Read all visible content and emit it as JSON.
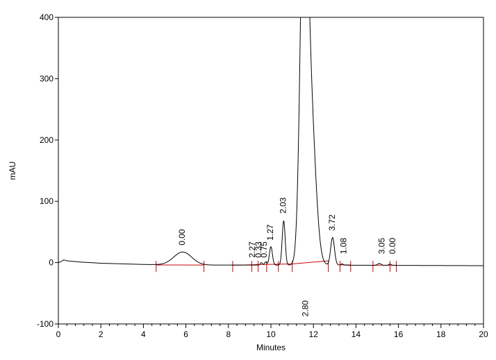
{
  "chart_data": {
    "type": "line",
    "xlabel": "Minutes",
    "ylabel": "mAU",
    "xlim": [
      0,
      20
    ],
    "ylim": [
      -100,
      400
    ],
    "x_ticks": [
      0,
      2,
      4,
      6,
      8,
      10,
      12,
      14,
      16,
      18,
      20
    ],
    "y_ticks": [
      -100,
      0,
      100,
      200,
      300,
      400
    ],
    "grid": false,
    "colors": {
      "trace": "#000000",
      "baseline": "#cc0000",
      "axis": "#000000"
    },
    "baseline_value": -4,
    "background": [
      [
        0.0,
        0
      ],
      [
        0.15,
        2
      ],
      [
        0.25,
        4.5
      ],
      [
        0.4,
        3
      ],
      [
        1.0,
        1
      ],
      [
        2.0,
        -1
      ],
      [
        3.0,
        -2
      ],
      [
        4.0,
        -3
      ],
      [
        5.0,
        -3.5
      ],
      [
        7.0,
        -4
      ],
      [
        12.0,
        -4
      ],
      [
        20.0,
        -5
      ]
    ],
    "peaks": [
      {
        "rt": 5.85,
        "height": 21,
        "sigma": 0.42,
        "label": "0.00"
      },
      {
        "rt": 9.55,
        "height": 4,
        "sigma": 0.05,
        "label": "0.33"
      },
      {
        "rt": 9.75,
        "height": 5,
        "sigma": 0.05,
        "label": "0.75"
      },
      {
        "rt": 10.0,
        "height": 30,
        "sigma": 0.07,
        "label": "1.27"
      },
      {
        "rt": 10.6,
        "height": 72,
        "sigma": 0.07,
        "label": "2.03"
      },
      {
        "rt": 11.55,
        "height": 560,
        "sigma": 0.17,
        "label": "2.80"
      },
      {
        "rt": 11.85,
        "height": 260,
        "sigma": 0.24,
        "label": ""
      },
      {
        "rt": 12.9,
        "height": 45,
        "sigma": 0.09,
        "label": "3.72"
      },
      {
        "rt": 13.35,
        "height": 2,
        "sigma": 0.06,
        "label": "1.08"
      },
      {
        "rt": 15.1,
        "height": 3,
        "sigma": 0.08,
        "label": "3.05"
      },
      {
        "rt": 15.6,
        "height": 2,
        "sigma": 0.06,
        "label": "0.00"
      }
    ],
    "baseline_segments": [
      [
        [
          4.6,
          -3.8
        ],
        [
          6.85,
          -4
        ]
      ],
      [
        [
          8.2,
          -4.2
        ],
        [
          9.1,
          -3.5
        ]
      ],
      [
        [
          9.1,
          -3.5
        ],
        [
          9.4,
          -3.2
        ]
      ],
      [
        [
          9.4,
          -3.2
        ],
        [
          9.8,
          -3.0
        ]
      ],
      [
        [
          9.8,
          -3.0
        ],
        [
          10.35,
          -2.6
        ]
      ],
      [
        [
          10.35,
          -2.6
        ],
        [
          11.0,
          -2.2
        ]
      ],
      [
        [
          11.0,
          -2.2
        ],
        [
          12.7,
          3
        ]
      ],
      [
        [
          13.25,
          -3.5
        ],
        [
          13.75,
          -3.8
        ]
      ],
      [
        [
          14.8,
          -4.2
        ],
        [
          15.3,
          -4.2
        ]
      ],
      [
        [
          15.3,
          -4.2
        ],
        [
          15.9,
          -4.2
        ]
      ]
    ],
    "integration_ticks": [
      4.6,
      6.85,
      8.2,
      9.1,
      9.4,
      9.8,
      10.35,
      11.0,
      12.7,
      13.25,
      13.75,
      14.8,
      15.6,
      15.9
    ],
    "annotations": [
      {
        "text": "0.00",
        "x": 5.95,
        "y": 28
      },
      {
        "text": "2.27",
        "x": 9.25,
        "y": 8
      },
      {
        "text": "0.33",
        "x": 9.55,
        "y": 8
      },
      {
        "text": "0.75",
        "x": 9.8,
        "y": 8
      },
      {
        "text": "1.27",
        "x": 10.1,
        "y": 36
      },
      {
        "text": "2.03",
        "x": 10.7,
        "y": 80
      },
      {
        "text": "2.80",
        "x": 11.75,
        "y": -88
      },
      {
        "text": "3.72",
        "x": 13.0,
        "y": 52
      },
      {
        "text": "1.08",
        "x": 13.55,
        "y": 14
      },
      {
        "text": "3.05",
        "x": 15.35,
        "y": 14
      },
      {
        "text": "0.00",
        "x": 15.85,
        "y": 14
      }
    ]
  }
}
